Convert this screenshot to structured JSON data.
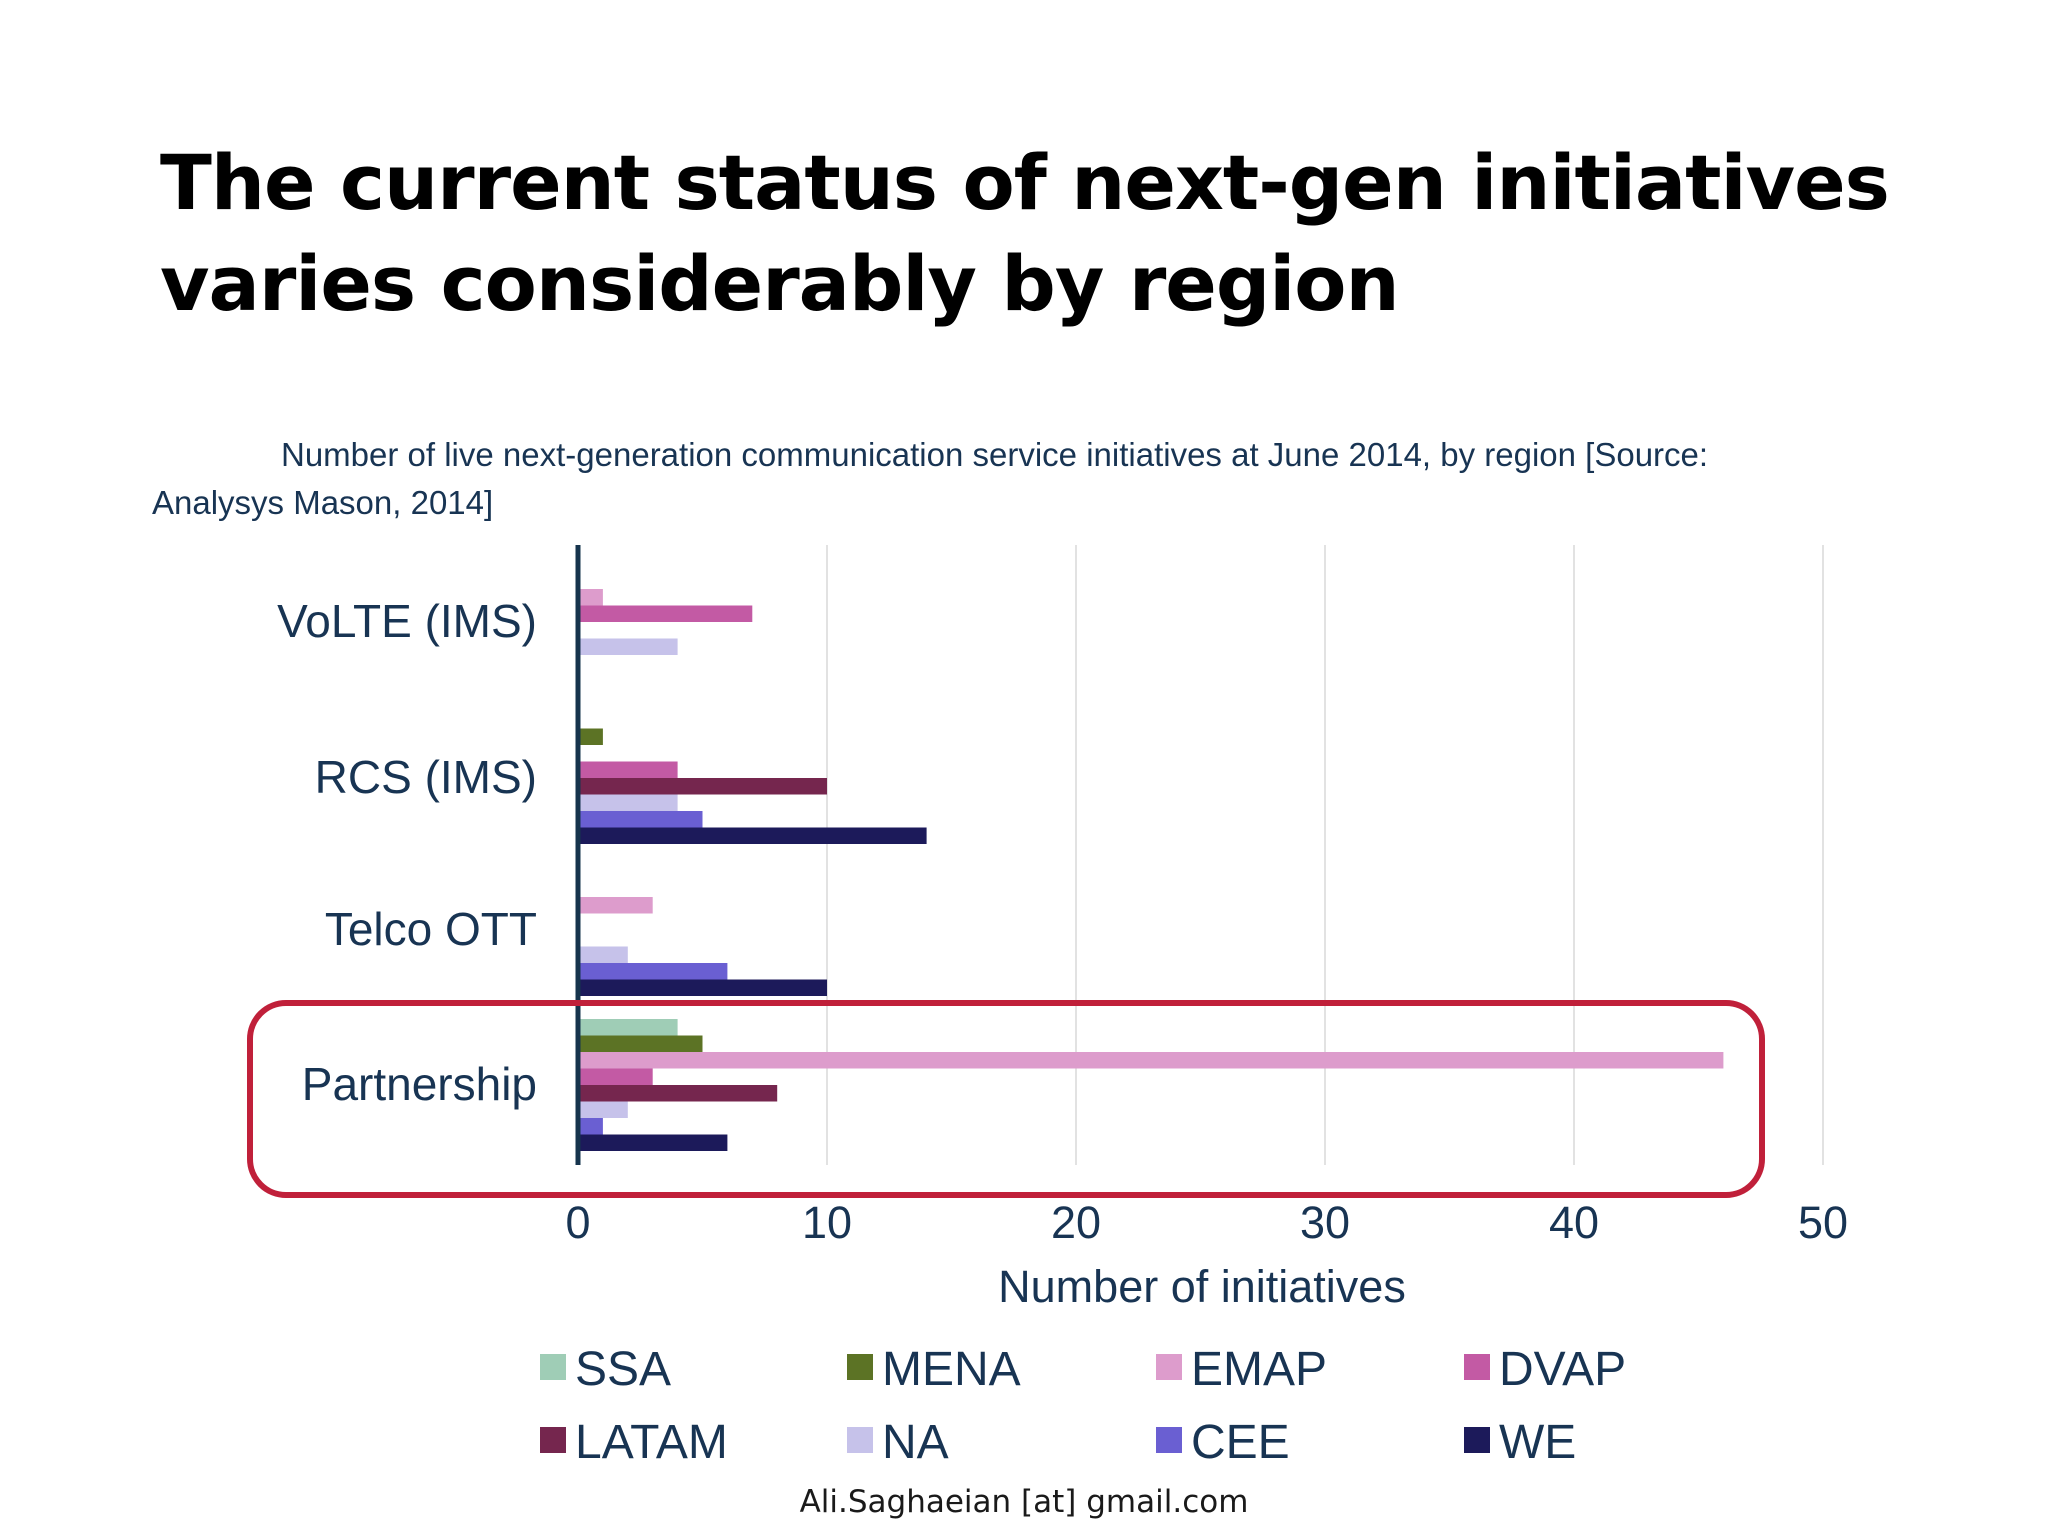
{
  "slide": {
    "title_lines": [
      "The current status of next-gen initiatives",
      "varies considerably by region"
    ],
    "footer": "Ali.Saghaeian [at] gmail.com"
  },
  "chart_data": {
    "type": "bar",
    "orientation": "horizontal",
    "title_lines": [
      "Number of live next-generation communication service initiatives at June 2014, by region [Source:",
      "Analysys Mason, 2014]"
    ],
    "xlabel": "Number of initiatives",
    "ylabel": "",
    "xlim": [
      0,
      50
    ],
    "xticks": [
      0,
      10,
      20,
      30,
      40,
      50
    ],
    "grid": "vertical",
    "legend_position": "bottom",
    "categories": [
      "VoLTE (IMS)",
      "RCS (IMS)",
      "Telco OTT",
      "Partnership"
    ],
    "highlighted_category": "Partnership",
    "highlight_color": "#c0203a",
    "series": [
      {
        "name": "SSA",
        "color": "#9fcdb6",
        "values": [
          0,
          0,
          0,
          4
        ]
      },
      {
        "name": "MENA",
        "color": "#5c7325",
        "values": [
          0,
          1,
          0,
          5
        ]
      },
      {
        "name": "EMAP",
        "color": "#dd9ccc",
        "values": [
          1,
          0,
          3,
          46
        ]
      },
      {
        "name": "DVAP",
        "color": "#c35aa4",
        "values": [
          7,
          4,
          0,
          3
        ]
      },
      {
        "name": "LATAM",
        "color": "#75264e",
        "values": [
          0,
          10,
          0,
          8
        ]
      },
      {
        "name": "NA",
        "color": "#c6c2ea",
        "values": [
          4,
          4,
          2,
          2
        ]
      },
      {
        "name": "CEE",
        "color": "#6a5fd2",
        "values": [
          0,
          5,
          6,
          1
        ]
      },
      {
        "name": "WE",
        "color": "#1c1a5a",
        "values": [
          0,
          14,
          10,
          6
        ]
      }
    ]
  }
}
